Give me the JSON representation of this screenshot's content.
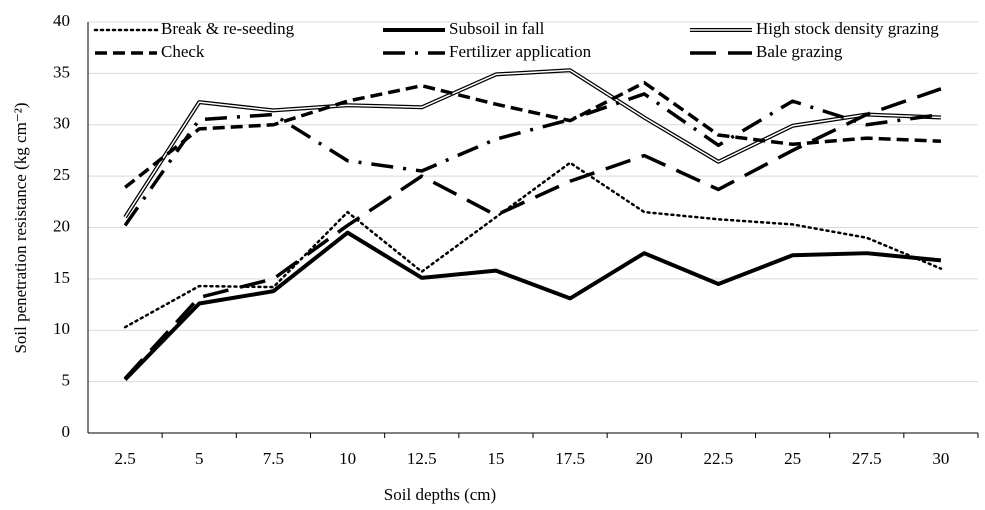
{
  "chart_data": {
    "type": "line",
    "xlabel": "Soil depths (cm)",
    "ylabel": "Soil penetration resistance (kg cm⁻²)",
    "categories": [
      "2.5",
      "5",
      "7.5",
      "10",
      "12.5",
      "15",
      "17.5",
      "20",
      "22.5",
      "25",
      "27.5",
      "30"
    ],
    "series": [
      {
        "name": "Break & re-seeding",
        "color": "#000000",
        "values": [
          10.3,
          14.3,
          14.2,
          21.5,
          15.7,
          21,
          26.3,
          21.5,
          20.8,
          20.3,
          19,
          16
        ]
      },
      {
        "name": "Subsoil in fall",
        "color": "#000000",
        "values": [
          5.2,
          12.6,
          13.8,
          19.5,
          15.1,
          15.8,
          13.1,
          17.5,
          14.5,
          17.3,
          17.5,
          16.8
        ]
      },
      {
        "name": "High stock density grazing",
        "color": "#000000",
        "values": [
          21,
          32.2,
          31.4,
          31.9,
          31.7,
          34.9,
          35.3,
          30.7,
          26.4,
          29.9,
          31,
          30.7
        ]
      },
      {
        "name": "Check",
        "color": "#000000",
        "values": [
          23.9,
          29.6,
          30,
          32.3,
          33.8,
          32,
          30.4,
          34.1,
          29,
          28.1,
          28.7,
          28.4
        ]
      },
      {
        "name": "Fertilizer application",
        "color": "#000000",
        "values": [
          20.2,
          30.5,
          31,
          26.5,
          25.5,
          28.6,
          30.5,
          33,
          28,
          32.3,
          30,
          31
        ]
      },
      {
        "name": "Bale grazing",
        "color": "#000000",
        "values": [
          5.3,
          13.2,
          15,
          20.2,
          25,
          21.2,
          24.5,
          27,
          23.7,
          27.5,
          31,
          33.5
        ]
      }
    ],
    "ylim": [
      0,
      40
    ],
    "yticks": [
      0,
      5,
      10,
      15,
      20,
      25,
      30,
      35,
      40
    ],
    "grid": true
  }
}
